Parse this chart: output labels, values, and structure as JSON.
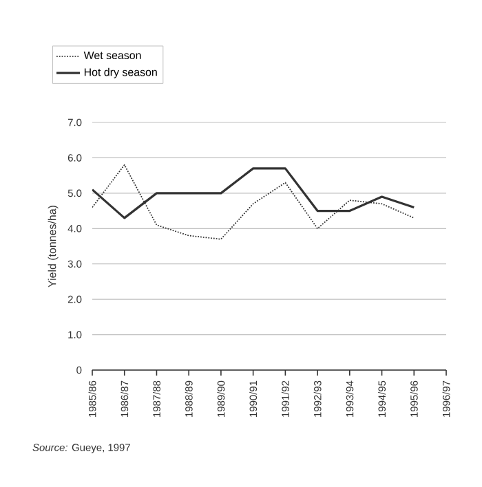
{
  "chart_data": {
    "type": "line",
    "ylabel": "Yield (tonnes/ha)",
    "annotations": [
      "*Source:* Gueye, 1997"
    ],
    "categories": [
      "1985/86",
      "1986/87",
      "1987/88",
      "1988/89",
      "1989/90",
      "1990/91",
      "1991/92",
      "1992/93",
      "1993/94",
      "1994/95",
      "1995/96",
      "1996/97"
    ],
    "ylim": [
      0,
      7
    ],
    "yticks": [
      {
        "value": 0,
        "label": "0"
      },
      {
        "value": 1,
        "label": "1.0"
      },
      {
        "value": 2,
        "label": "2.0"
      },
      {
        "value": 3,
        "label": "3.0"
      },
      {
        "value": 4,
        "label": "4.0"
      },
      {
        "value": 5,
        "label": "5.0"
      },
      {
        "value": 6,
        "label": "6.0"
      },
      {
        "value": 7,
        "label": "7.0"
      }
    ],
    "series": [
      {
        "name": "Wet season",
        "color": "#333333",
        "line_style": "dotted",
        "values": [
          4.6,
          5.8,
          4.1,
          3.8,
          3.7,
          4.7,
          5.3,
          4.0,
          4.8,
          4.7,
          4.3,
          null
        ]
      },
      {
        "name": "Hot dry season",
        "color": "#333333",
        "line_style": "solid",
        "values": [
          5.1,
          4.3,
          5.0,
          5.0,
          5.0,
          5.7,
          5.7,
          4.5,
          4.5,
          4.9,
          4.6,
          null
        ]
      }
    ],
    "grid": "y",
    "legend": "top left",
    "marker": "none"
  }
}
